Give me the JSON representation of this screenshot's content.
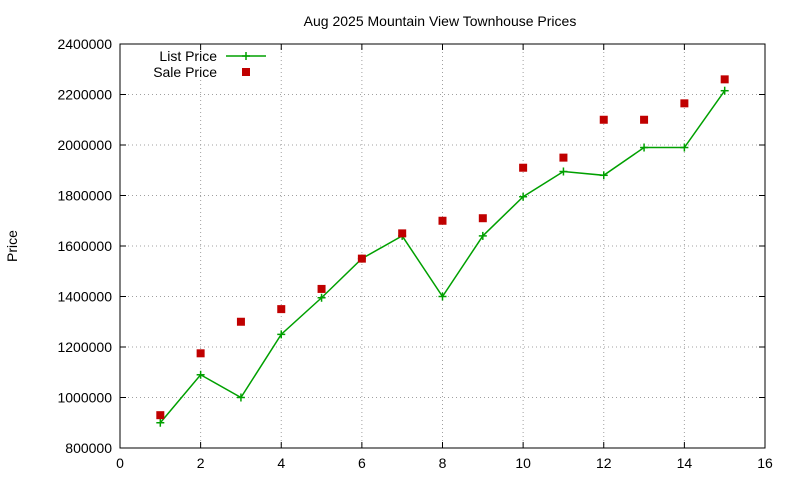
{
  "chart_data": {
    "type": "line",
    "title": "Aug 2025 Mountain View Townhouse Prices",
    "xlabel": "",
    "ylabel": "Price",
    "xlim": [
      0,
      16
    ],
    "ylim": [
      800000,
      2400000
    ],
    "x_ticks": [
      0,
      2,
      4,
      6,
      8,
      10,
      12,
      14,
      16
    ],
    "y_ticks": [
      800000,
      1000000,
      1200000,
      1400000,
      1600000,
      1800000,
      2000000,
      2200000,
      2400000
    ],
    "grid": true,
    "legend_position": "top-left",
    "series": [
      {
        "name": "List Price",
        "style": "linespoints",
        "marker": "plus",
        "color": "#00a000",
        "x": [
          1,
          2,
          3,
          4,
          5,
          6,
          7,
          8,
          9,
          10,
          11,
          12,
          13,
          14,
          15
        ],
        "y": [
          900000,
          1090000,
          1000000,
          1250000,
          1395000,
          1550000,
          1640000,
          1400000,
          1640000,
          1795000,
          1895000,
          1880000,
          1990000,
          1990000,
          2215000
        ]
      },
      {
        "name": "Sale Price",
        "style": "points",
        "marker": "square",
        "color": "#c00000",
        "x": [
          1,
          2,
          3,
          4,
          5,
          6,
          7,
          8,
          9,
          10,
          11,
          12,
          13,
          14,
          15
        ],
        "y": [
          930000,
          1175000,
          1300000,
          1350000,
          1430000,
          1550000,
          1650000,
          1700000,
          1710000,
          1910000,
          1950000,
          2100000,
          2100000,
          2165000,
          2260000
        ]
      }
    ]
  }
}
